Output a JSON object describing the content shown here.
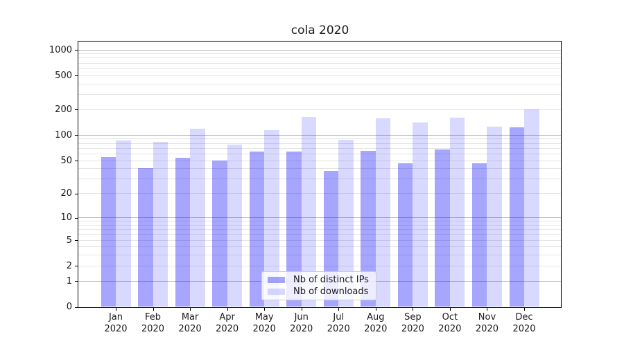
{
  "chart_data": {
    "type": "bar",
    "title": "cola 2020",
    "x_months": [
      "Jan",
      "Feb",
      "Mar",
      "Apr",
      "May",
      "Jun",
      "Jul",
      "Aug",
      "Sep",
      "Oct",
      "Nov",
      "Dec"
    ],
    "x_year": "2020",
    "series": [
      {
        "name": "Nb of distinct IPs",
        "key": "distinct-ips",
        "color": "rgba(0,0,255,0.35)",
        "values": [
          55,
          41,
          54,
          50,
          64,
          64,
          38,
          65,
          46,
          68,
          46,
          123
        ]
      },
      {
        "name": "Nb of downloads",
        "key": "downloads",
        "color": "rgba(0,0,255,0.15)",
        "values": [
          87,
          83,
          120,
          77,
          115,
          163,
          88,
          158,
          142,
          160,
          125,
          200
        ]
      }
    ],
    "y_ticks": [
      0,
      1,
      2,
      5,
      10,
      20,
      50,
      100,
      200,
      500,
      1000
    ],
    "y_scale": "log(1+x)",
    "y_max": 1000,
    "grid": true,
    "legend_position": "lower center",
    "grid_colors": {
      "major": "rgba(0,0,0,0.28)",
      "minor": "rgba(0,0,0,0.10)"
    },
    "frame_color": "#000000",
    "background_color": "#ffffff"
  }
}
